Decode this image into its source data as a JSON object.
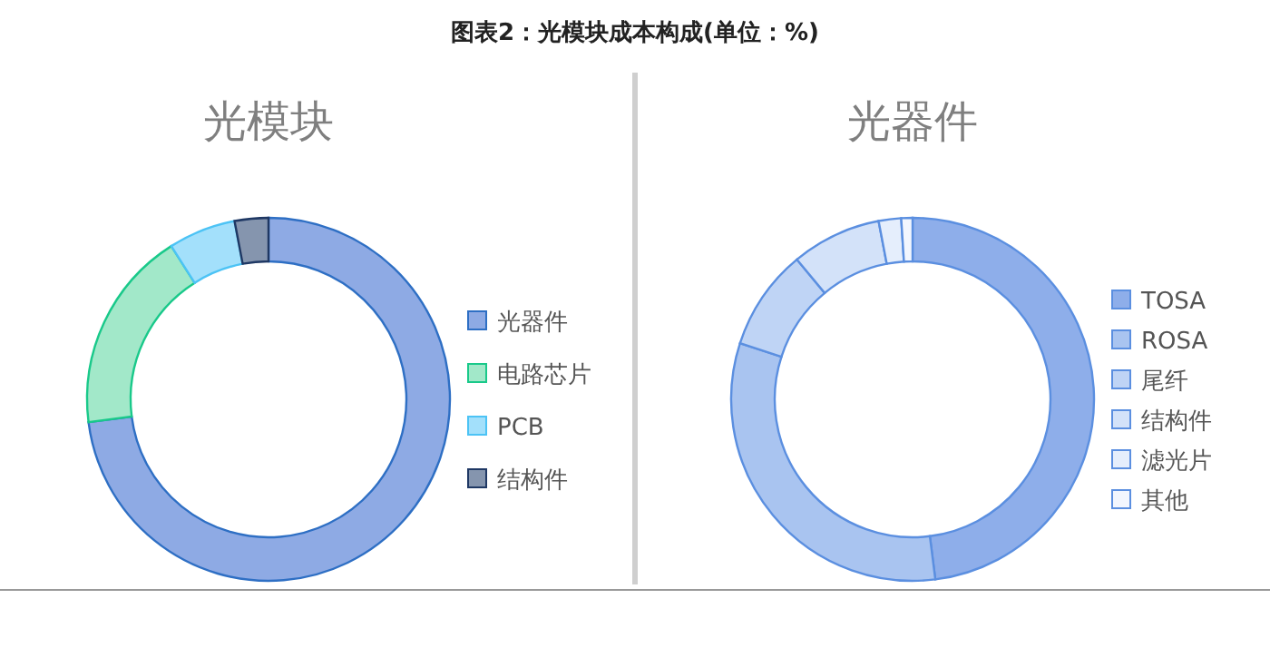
{
  "chart_data": [
    {
      "type": "donut",
      "title": "光模块",
      "categories": [
        "光器件",
        "电路芯片",
        "PCB",
        "结构件"
      ],
      "values": [
        73,
        18,
        6,
        3
      ],
      "colors": [
        "#8eaae4",
        "#a2e8c9",
        "#a3e0fb",
        "#8595ae"
      ],
      "legend": "right",
      "annotations": [
        "图表2：光模块成本构成(单位：%)"
      ]
    },
    {
      "type": "donut",
      "title": "光器件",
      "categories": [
        "TOSA",
        "ROSA",
        "尾纤",
        "结构件",
        "滤光片",
        "其他"
      ],
      "values": [
        48,
        32,
        9,
        8,
        2,
        1
      ],
      "colors": [
        "#8eaeea",
        "#a9c4f0",
        "#bfd4f5",
        "#d3e2f9",
        "#e5eefc",
        "#f2f6fe"
      ],
      "legend": "right"
    }
  ]
}
